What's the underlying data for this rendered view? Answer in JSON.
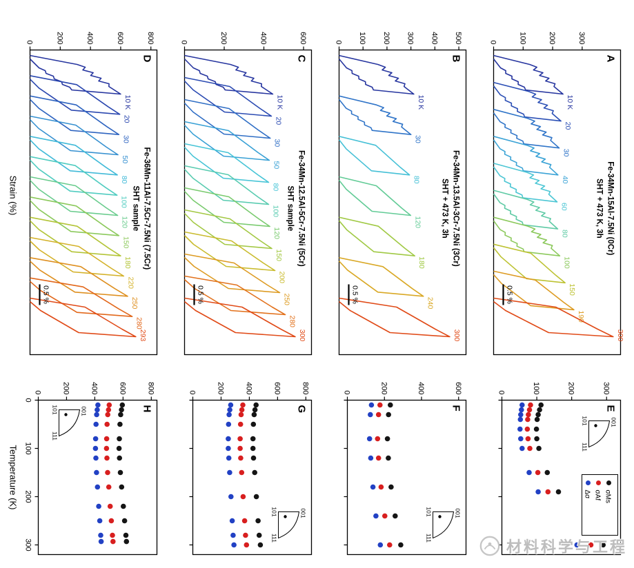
{
  "axis_titles": {
    "strain": "Strain (%)",
    "temperature": "Temperature (K)"
  },
  "watermark": {
    "text": "材料科学与工程"
  },
  "chart_data": [
    {
      "id": "A",
      "label": "A",
      "type": "line",
      "alloy": "Fe-34Mn-15Al-7.5Ni (0Cr)",
      "treatment": "SHT + 473 K, 3h",
      "scalebar": "0.5 %",
      "xlabel": "Strain (%)",
      "ylabel": "",
      "ymax": 430,
      "yticks": [
        0,
        100,
        200,
        300
      ],
      "temps_K": [
        10,
        20,
        30,
        40,
        60,
        80,
        100,
        150,
        190,
        300
      ],
      "temps": [
        "10 K",
        "20",
        "30",
        "40",
        "60",
        "80",
        "100",
        "150",
        "190",
        "300"
      ],
      "peaks": [
        235,
        228,
        222,
        218,
        215,
        217,
        224,
        242,
        272,
        405
      ],
      "colors": [
        "#26359f",
        "#2b4fb5",
        "#2f74c8",
        "#3ba3d6",
        "#4cc6d4",
        "#5fcaa5",
        "#8cc95c",
        "#bdc232",
        "#dd9b22",
        "#e04a17"
      ],
      "serrated_below_K": 110
    },
    {
      "id": "B",
      "label": "B",
      "type": "line",
      "alloy": "Fe-34Mn-13.5Al-3Cr-7.5Ni (3Cr)",
      "treatment": "SHT + 473 K, 3h",
      "scalebar": "0.5 %",
      "xlabel": "Strain (%)",
      "ylabel": "",
      "ymax": 530,
      "yticks": [
        0,
        100,
        200,
        300,
        400,
        500
      ],
      "temps_K": [
        10,
        30,
        80,
        120,
        180,
        240,
        300
      ],
      "temps": [
        "10 K",
        "30",
        "80",
        "120",
        "180",
        "240",
        "300"
      ],
      "peaks": [
        312,
        300,
        294,
        299,
        316,
        352,
        462
      ],
      "colors": [
        "#26359f",
        "#2f74c8",
        "#45c0d6",
        "#62cb96",
        "#a0c944",
        "#d9a825",
        "#e04a17"
      ],
      "serrated_below_K": 40
    },
    {
      "id": "C",
      "label": "C",
      "type": "line",
      "alloy": "Fe-34Mn-12.5Al-5Cr-7.5Ni (5Cr)",
      "treatment": "SHT sample",
      "scalebar": "0.5 %",
      "xlabel": "Strain (%)",
      "ylabel": "",
      "ymax": 640,
      "yticks": [
        0,
        200,
        400,
        600
      ],
      "temps_K": [
        10,
        20,
        30,
        50,
        80,
        100,
        120,
        150,
        200,
        250,
        280,
        300
      ],
      "temps": [
        "10 K",
        "20",
        "30",
        "50",
        "80",
        "100",
        "120",
        "150",
        "200",
        "250",
        "280",
        "300"
      ],
      "peaks": [
        445,
        438,
        432,
        427,
        424,
        424,
        430,
        440,
        456,
        480,
        508,
        558
      ],
      "colors": [
        "#26359f",
        "#2a4ab2",
        "#2f6ec5",
        "#37a0d5",
        "#46c4d6",
        "#58cbb0",
        "#79ca6e",
        "#a3c843",
        "#c9bb2d",
        "#dd9b22",
        "#e2711c",
        "#e04a17"
      ],
      "serrated_below_K": 15
    },
    {
      "id": "D",
      "label": "D",
      "type": "line",
      "alloy": "Fe-36Mn-11Al-7.5Cr-7.5Ni (7.5Cr)",
      "treatment": "SHT sample",
      "scalebar": "0.5 %",
      "xlabel": "Strain (%)",
      "ylabel": "",
      "ymax": 840,
      "yticks": [
        0,
        200,
        400,
        600,
        800
      ],
      "temps_K": [
        10,
        20,
        30,
        50,
        80,
        100,
        120,
        150,
        180,
        220,
        250,
        280,
        293
      ],
      "temps": [
        "10 K",
        "20",
        "30",
        "50",
        "80",
        "100",
        "120",
        "150",
        "180",
        "220",
        "250",
        "280",
        "293"
      ],
      "peaks": [
        600,
        594,
        588,
        582,
        578,
        576,
        580,
        588,
        600,
        620,
        646,
        676,
        700
      ],
      "colors": [
        "#26359f",
        "#2a47af",
        "#2e64c0",
        "#3590d0",
        "#41bad8",
        "#50ccc0",
        "#68cb8c",
        "#8cc95c",
        "#b3c437",
        "#d3b128",
        "#de8f1f",
        "#e2671a",
        "#e04a17"
      ],
      "serrated_below_K": 15
    },
    {
      "id": "E",
      "label": "E",
      "type": "scatter",
      "xlabel": "Temperature (K)",
      "ylabel": "",
      "xmax": 320,
      "xticks": [
        0,
        100,
        200,
        300
      ],
      "show_x_labels": false,
      "ymax": 340,
      "yticks": [
        0,
        100,
        200,
        300
      ],
      "temps_K": [
        10,
        20,
        30,
        40,
        60,
        80,
        100,
        150,
        190,
        300
      ],
      "series": [
        {
          "name": "σMs",
          "color": "#151515",
          "values": [
            112,
            108,
            104,
            101,
            99,
            100,
            106,
            130,
            162,
            290
          ]
        },
        {
          "name": "σAf",
          "color": "#d81f1f",
          "values": [
            82,
            79,
            76,
            74,
            73,
            75,
            80,
            103,
            132,
            255
          ]
        },
        {
          "name": "Δσ",
          "color": "#2241c4",
          "values": [
            58,
            56,
            54,
            53,
            52,
            54,
            58,
            78,
            104,
            215
          ]
        }
      ],
      "inset": {
        "corners": [
          "001",
          "101",
          "111"
        ],
        "position": "top-left"
      },
      "legend": true
    },
    {
      "id": "F",
      "label": "F",
      "type": "scatter",
      "xlabel": "Temperature (K)",
      "ylabel": "",
      "xmax": 320,
      "xticks": [
        0,
        100,
        200,
        300
      ],
      "show_x_labels": false,
      "ymax": 640,
      "yticks": [
        0,
        200,
        400,
        600
      ],
      "temps_K": [
        10,
        30,
        80,
        120,
        180,
        240,
        300
      ],
      "series": [
        {
          "name": "σMs",
          "color": "#151515",
          "values": [
            232,
            222,
            216,
            221,
            236,
            258,
            288
          ]
        },
        {
          "name": "σAf",
          "color": "#d81f1f",
          "values": [
            176,
            168,
            163,
            168,
            182,
            202,
            228
          ]
        },
        {
          "name": "Δσ",
          "color": "#2241c4",
          "values": [
            130,
            124,
            120,
            126,
            138,
            154,
            178
          ]
        }
      ],
      "inset": {
        "corners": [
          "001",
          "101",
          "111"
        ],
        "position": "top-right"
      },
      "legend": false
    },
    {
      "id": "G",
      "label": "G",
      "type": "scatter",
      "xlabel": "Temperature (K)",
      "ylabel": "",
      "xmax": 320,
      "xticks": [
        0,
        100,
        200,
        300
      ],
      "show_x_labels": false,
      "ymax": 840,
      "yticks": [
        0,
        200,
        400,
        600,
        800
      ],
      "temps_K": [
        10,
        20,
        30,
        50,
        80,
        100,
        120,
        150,
        200,
        250,
        280,
        300
      ],
      "series": [
        {
          "name": "σMs",
          "color": "#151515",
          "values": [
            448,
            440,
            434,
            429,
            426,
            426,
            430,
            438,
            450,
            462,
            470,
            478
          ]
        },
        {
          "name": "σAf",
          "color": "#d81f1f",
          "values": [
            354,
            347,
            342,
            338,
            335,
            335,
            339,
            346,
            356,
            367,
            373,
            380
          ]
        },
        {
          "name": "Δσ",
          "color": "#2241c4",
          "values": [
            268,
            262,
            257,
            253,
            251,
            251,
            255,
            261,
            270,
            279,
            285,
            291
          ]
        }
      ],
      "inset": {
        "corners": [
          "001",
          "101",
          "111"
        ],
        "position": "top-right"
      },
      "legend": false
    },
    {
      "id": "H",
      "label": "H",
      "type": "scatter",
      "xlabel": "Temperature (K)",
      "ylabel": "",
      "xmax": 320,
      "xticks": [
        0,
        100,
        200,
        300
      ],
      "show_x_labels": true,
      "ymax": 840,
      "yticks": [
        0,
        200,
        400,
        600,
        800
      ],
      "temps_K": [
        10,
        20,
        30,
        50,
        80,
        100,
        120,
        150,
        180,
        220,
        250,
        280,
        293
      ],
      "series": [
        {
          "name": "σMs",
          "color": "#151515",
          "values": [
            595,
            589,
            583,
            578,
            574,
            572,
            575,
            581,
            590,
            602,
            611,
            620,
            624
          ]
        },
        {
          "name": "σAf",
          "color": "#d81f1f",
          "values": [
            502,
            497,
            492,
            487,
            484,
            483,
            486,
            491,
            499,
            509,
            517,
            525,
            529
          ]
        },
        {
          "name": "Δσ",
          "color": "#2241c4",
          "values": [
            422,
            417,
            413,
            409,
            406,
            405,
            408,
            412,
            419,
            428,
            435,
            442,
            445
          ]
        }
      ],
      "inset": {
        "corners": [
          "001",
          "101",
          "111"
        ],
        "position": "bottom-left"
      },
      "legend": false
    }
  ]
}
